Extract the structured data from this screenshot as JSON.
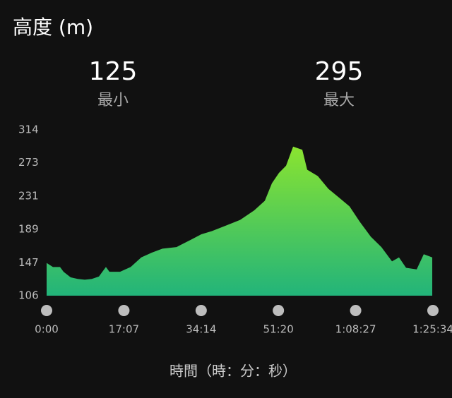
{
  "title": "高度 (m)",
  "stats": [
    {
      "value": 125,
      "label": "最小"
    },
    {
      "value": 295,
      "label": "最大"
    }
  ],
  "chart_data": {
    "type": "area",
    "x": [
      0,
      84,
      178,
      225,
      319,
      413,
      507,
      601,
      695,
      788,
      835,
      976,
      1117,
      1258,
      1398,
      1539,
      1727,
      1915,
      2056,
      2196,
      2384,
      2572,
      2759,
      2900,
      2994,
      3088,
      3182,
      3276,
      3398,
      3463,
      3604,
      3745,
      3886,
      4026,
      4167,
      4308,
      4449,
      4590,
      4683,
      4777,
      4918,
      5012,
      5125
    ],
    "values": [
      147,
      142,
      142,
      136,
      129,
      127,
      126,
      127,
      130,
      142,
      136,
      136,
      142,
      154,
      160,
      165,
      167,
      176,
      183,
      187,
      194,
      201,
      213,
      225,
      247,
      260,
      269,
      293,
      289,
      264,
      256,
      240,
      229,
      218,
      198,
      180,
      167,
      149,
      154,
      141,
      139,
      158,
      154
    ],
    "gradient": [
      "#8ae430",
      "#22b47a"
    ],
    "xlabel": "時間（時：分：秒）",
    "xlim": [
      0,
      5134
    ],
    "xticks": [
      {
        "value": 0,
        "label": "0:00"
      },
      {
        "value": 1027,
        "label": "17:07"
      },
      {
        "value": 2054,
        "label": "34:14"
      },
      {
        "value": 3080,
        "label": "51:20"
      },
      {
        "value": 4107,
        "label": "1:08:27"
      },
      {
        "value": 5134,
        "label": "1:25:34"
      }
    ],
    "ylim": [
      106,
      314
    ],
    "yticks": [
      106,
      147,
      189,
      231,
      273,
      314
    ]
  }
}
